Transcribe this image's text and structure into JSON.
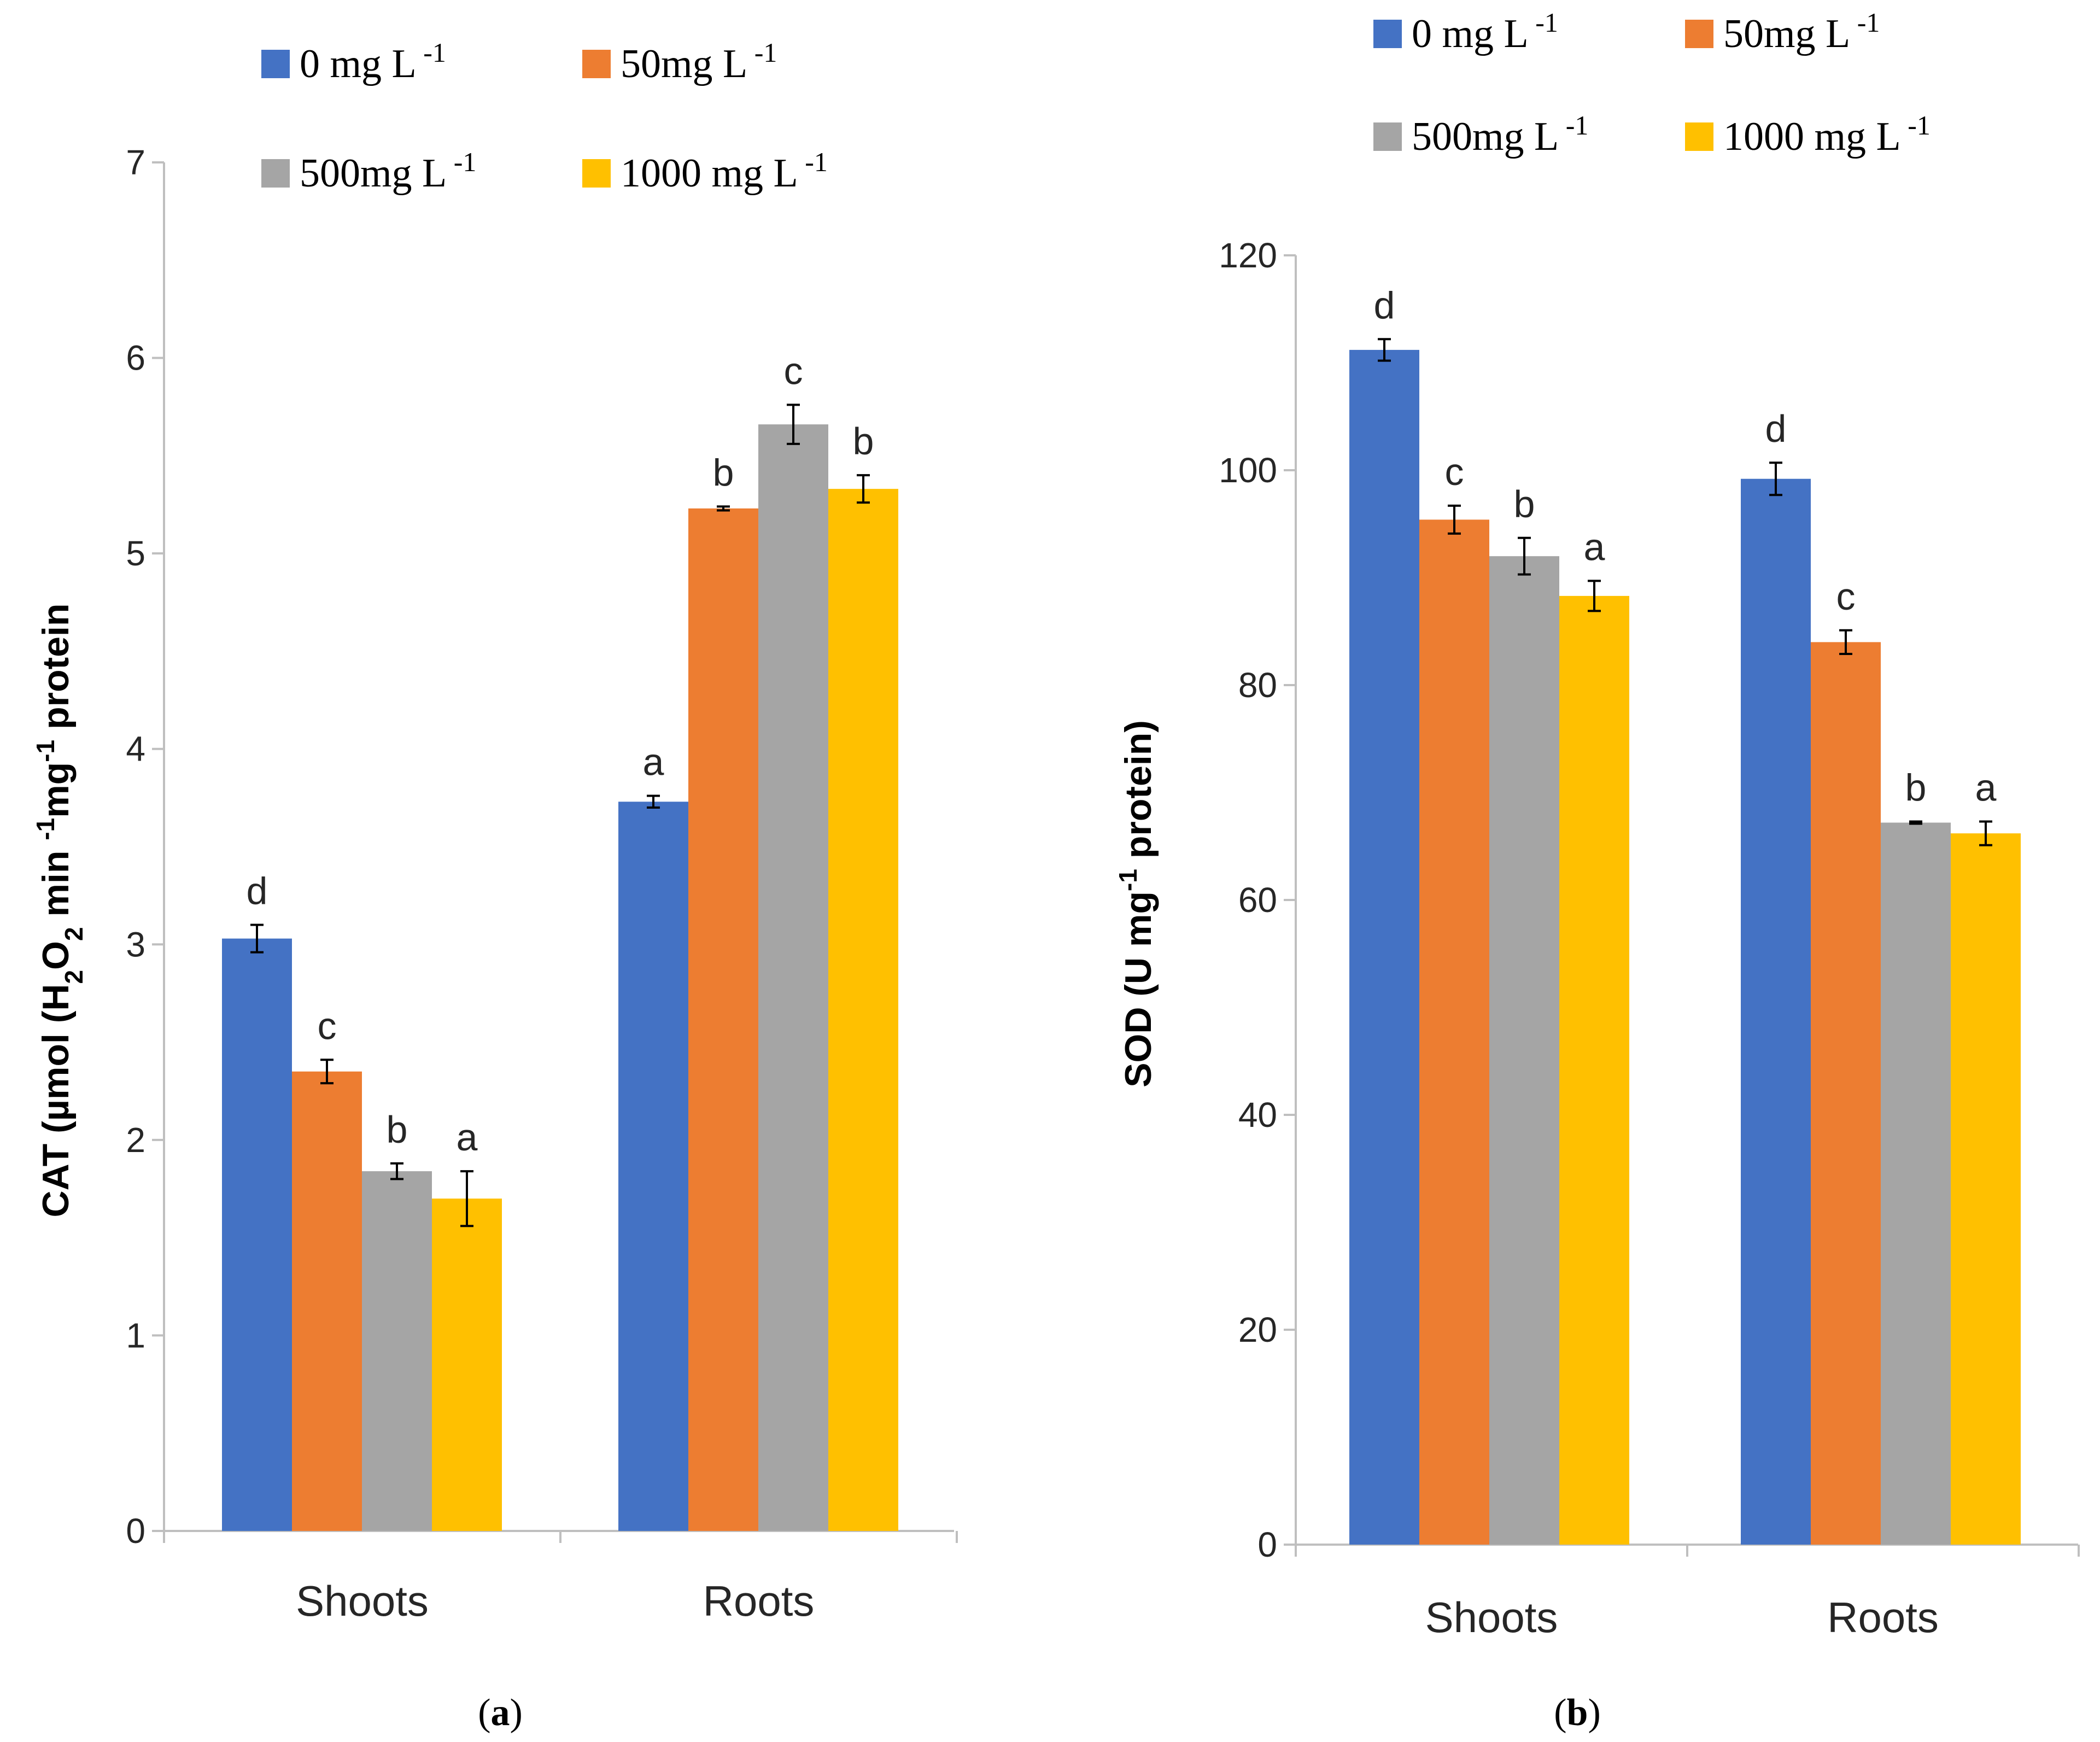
{
  "chart_data": [
    {
      "type": "bar",
      "panel_label": "(a)",
      "panel_letter": "a",
      "categories": [
        "Shoots",
        "Roots"
      ],
      "ylabel": "CAT (µmol (H2O2 min -1mg-1 protein",
      "ylabel_parts": {
        "pre": "CAT (µmol (H",
        "sub": "2",
        "mid": "O",
        "sub2": "2",
        "post": " min ",
        "sup": "-1",
        "post2": "mg",
        "sup2": "-1",
        "post3": " protein"
      },
      "ylim": [
        0,
        7
      ],
      "yticks": [
        0,
        1,
        2,
        3,
        4,
        5,
        6,
        7
      ],
      "series": [
        {
          "name": "0 mg L",
          "sup": "-1",
          "color": "#4472C4",
          "values": [
            3.03,
            3.73
          ],
          "errors": [
            0.07,
            0.03
          ],
          "letters": [
            "d",
            "a"
          ]
        },
        {
          "name": "50mg L",
          "sup": "-1",
          "color": "#ED7D31",
          "values": [
            2.35,
            5.23
          ],
          "errors": [
            0.06,
            0.01
          ],
          "letters": [
            "c",
            "b"
          ]
        },
        {
          "name": "500mg L",
          "sup": "-1",
          "color": "#A5A5A5",
          "values": [
            1.84,
            5.66
          ],
          "errors": [
            0.04,
            0.1
          ],
          "letters": [
            "b",
            "c"
          ]
        },
        {
          "name": "1000 mg L",
          "sup": "-1",
          "color": "#FFC000",
          "values": [
            1.7,
            5.33
          ],
          "errors": [
            0.14,
            0.07
          ],
          "letters": [
            "a",
            "b"
          ]
        }
      ]
    },
    {
      "type": "bar",
      "panel_label": "(b)",
      "panel_letter": "b",
      "categories": [
        "Shoots",
        "Roots"
      ],
      "ylabel": "SOD (U mg-1 protein)",
      "ylabel_parts": {
        "pre": "SOD (U mg",
        "sup": "-1",
        "post": " protein)"
      },
      "ylim": [
        0,
        120
      ],
      "yticks": [
        0,
        20,
        40,
        60,
        80,
        100,
        120
      ],
      "series": [
        {
          "name": "0 mg L",
          "sup": "-1",
          "color": "#4472C4",
          "values": [
            111.2,
            99.2
          ],
          "errors": [
            1.0,
            1.5
          ],
          "letters": [
            "d",
            "d"
          ]
        },
        {
          "name": "50mg L",
          "sup": "-1",
          "color": "#ED7D31",
          "values": [
            95.4,
            84.0
          ],
          "errors": [
            1.3,
            1.1
          ],
          "letters": [
            "c",
            "c"
          ]
        },
        {
          "name": "500mg L",
          "sup": "-1",
          "color": "#A5A5A5",
          "values": [
            92.0,
            67.2
          ],
          "errors": [
            1.7,
            0.1
          ],
          "letters": [
            "b",
            "b"
          ]
        },
        {
          "name": "1000 mg L",
          "sup": "-1",
          "color": "#FFC000",
          "values": [
            88.3,
            66.2
          ],
          "errors": [
            1.4,
            1.1
          ],
          "letters": [
            "a",
            "a"
          ]
        }
      ]
    }
  ]
}
